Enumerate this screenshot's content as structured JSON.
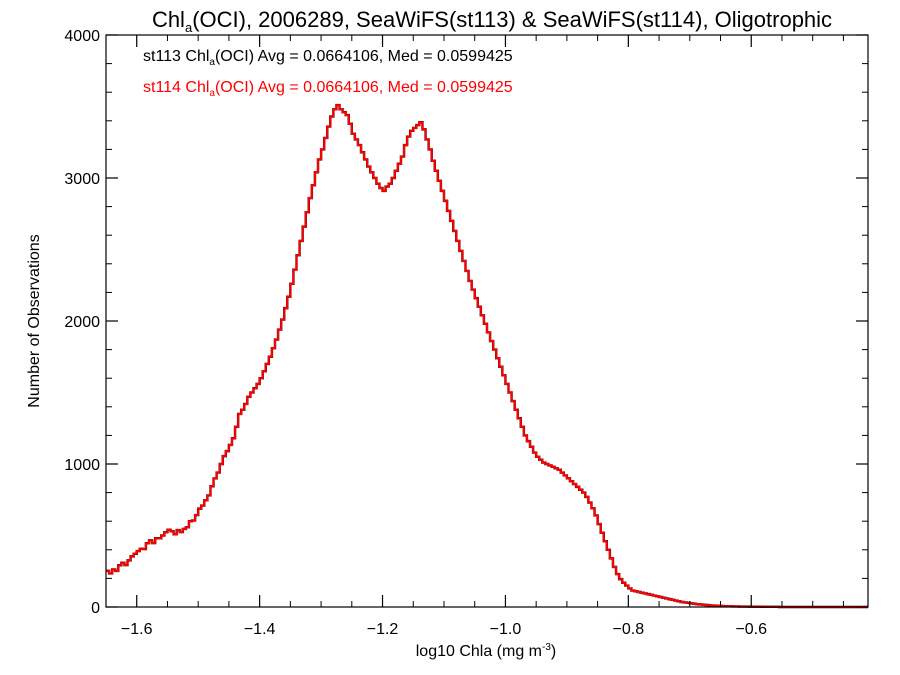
{
  "chart_data": {
    "type": "histogram",
    "title": {
      "base": "Chl",
      "sub": "a",
      "rest": "(OCI), 2006289, SeaWiFS(st113) & SeaWiFS(st114), Oligotrophic"
    },
    "xlabel": {
      "base": "log10 Chla (mg m",
      "sup": "-3",
      "close": ")"
    },
    "ylabel": "Number of Observations",
    "xlim": [
      -1.65,
      -0.41
    ],
    "ylim": [
      0,
      4000
    ],
    "x_ticks": [
      {
        "value": -1.6,
        "label": "−1.6"
      },
      {
        "value": -1.4,
        "label": "−1.4"
      },
      {
        "value": -1.2,
        "label": "−1.2"
      },
      {
        "value": -1.0,
        "label": "−1.0"
      },
      {
        "value": -0.8,
        "label": "−0.8"
      },
      {
        "value": -0.6,
        "label": "−0.6"
      }
    ],
    "y_ticks": [
      {
        "value": 0,
        "label": "0"
      },
      {
        "value": 1000,
        "label": "1000"
      },
      {
        "value": 2000,
        "label": "2000"
      },
      {
        "value": 3000,
        "label": "3000"
      },
      {
        "value": 4000,
        "label": "4000"
      }
    ],
    "x_minor_step": 0.05,
    "y_minor_step": 200,
    "annotations": [
      {
        "prefix": "st113 Chl",
        "sub": "a",
        "suffix": "(OCI) Avg = 0.0664106, Med = 0.0599425",
        "color": "#000000"
      },
      {
        "prefix": "st114 Chl",
        "sub": "a",
        "suffix": "(OCI) Avg = 0.0664106, Med = 0.0599425",
        "color": "#ff0000"
      }
    ],
    "series": [
      {
        "name": "st113",
        "color": "#000000"
      },
      {
        "name": "st114",
        "color": "#ff0000"
      }
    ],
    "bin_width": 0.005,
    "x_start": -1.65,
    "values": [
      254,
      235,
      263,
      252,
      292,
      310,
      293,
      326,
      354,
      372,
      391,
      407,
      405,
      446,
      466,
      447,
      481,
      480,
      500,
      523,
      541,
      529,
      508,
      538,
      524,
      546,
      558,
      600,
      605,
      643,
      688,
      709,
      746,
      780,
      844,
      899,
      940,
      1000,
      1055,
      1090,
      1133,
      1180,
      1260,
      1350,
      1380,
      1420,
      1470,
      1500,
      1530,
      1560,
      1600,
      1648,
      1700,
      1750,
      1810,
      1870,
      1940,
      2010,
      2090,
      2170,
      2260,
      2360,
      2460,
      2560,
      2660,
      2760,
      2860,
      2950,
      3040,
      3130,
      3200,
      3280,
      3360,
      3430,
      3480,
      3510,
      3480,
      3460,
      3440,
      3380,
      3310,
      3270,
      3230,
      3180,
      3130,
      3080,
      3040,
      3000,
      2960,
      2930,
      2910,
      2940,
      2960,
      3000,
      3050,
      3100,
      3150,
      3230,
      3290,
      3330,
      3350,
      3370,
      3390,
      3340,
      3270,
      3200,
      3120,
      3050,
      2980,
      2910,
      2840,
      2770,
      2700,
      2630,
      2560,
      2490,
      2420,
      2350,
      2280,
      2220,
      2160,
      2100,
      2040,
      1980,
      1920,
      1860,
      1800,
      1740,
      1680,
      1620,
      1560,
      1500,
      1440,
      1380,
      1320,
      1260,
      1200,
      1160,
      1120,
      1080,
      1050,
      1030,
      1010,
      1000,
      990,
      980,
      970,
      960,
      940,
      920,
      900,
      880,
      860,
      840,
      820,
      800,
      770,
      730,
      690,
      640,
      580,
      520,
      460,
      400,
      340,
      280,
      230,
      195,
      170,
      150,
      130,
      115,
      110,
      105,
      100,
      95,
      90,
      85,
      80,
      75,
      70,
      65,
      60,
      55,
      50,
      45,
      40,
      35,
      32,
      29,
      26,
      23,
      20,
      18,
      16,
      14,
      12,
      10,
      9,
      8,
      7,
      6,
      5,
      5,
      4,
      4,
      3,
      3,
      3,
      2,
      2,
      2,
      2,
      1,
      1,
      1,
      1,
      1,
      1,
      0,
      0,
      0,
      0,
      0,
      0,
      0,
      0,
      0,
      0,
      0,
      0,
      0,
      0,
      0,
      0,
      0,
      0,
      0,
      0,
      0,
      0,
      0,
      0,
      0,
      0,
      0,
      0,
      0,
      0,
      0
    ]
  }
}
